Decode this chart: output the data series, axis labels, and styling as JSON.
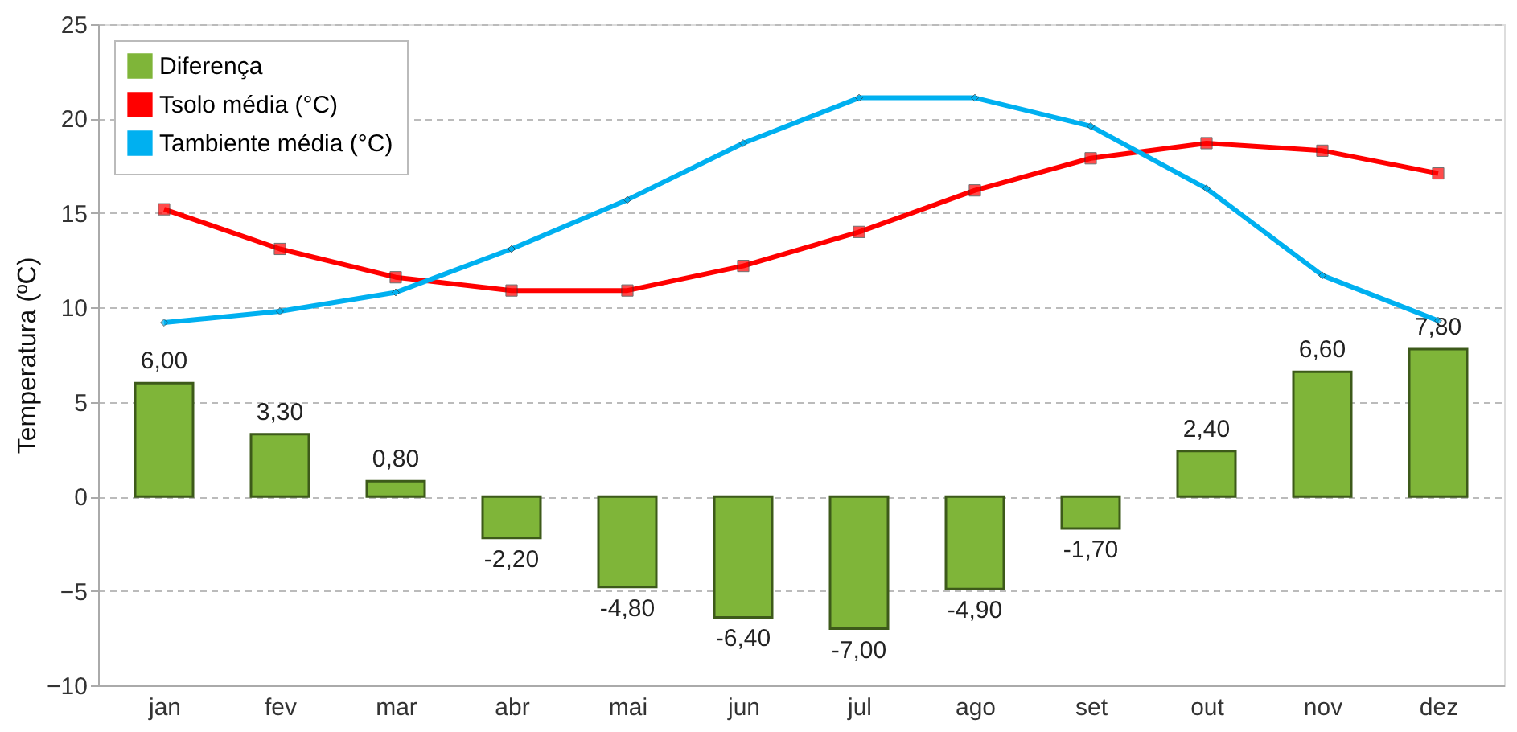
{
  "chart_data": {
    "type": "bar",
    "ylabel": "Temperatura (ºC)",
    "categories": [
      "jan",
      "fev",
      "mar",
      "abr",
      "mai",
      "jun",
      "jul",
      "ago",
      "set",
      "out",
      "nov",
      "dez"
    ],
    "series": [
      {
        "name": "Diferença",
        "color": "#7fb539",
        "values": [
          6.0,
          3.3,
          0.8,
          -2.2,
          -4.8,
          -6.4,
          -7.0,
          -4.9,
          -1.7,
          2.4,
          6.6,
          7.8
        ],
        "value_labels": [
          "6,00",
          "3,30",
          "0,80",
          "-2,20",
          "-4,80",
          "-6,40",
          "-7,00",
          "-4,90",
          "-1,70",
          "2,40",
          "6,60",
          "7,80"
        ]
      },
      {
        "name": "Tsolo média (°C)",
        "type": "line",
        "color": "#ff0000",
        "marker": "square",
        "values": [
          15.2,
          13.1,
          11.6,
          10.9,
          10.9,
          12.2,
          14.0,
          16.2,
          17.9,
          18.7,
          18.3,
          17.1
        ]
      },
      {
        "name": "Tambiente média (°C)",
        "type": "line",
        "color": "#00b0f0",
        "marker": "diamond",
        "values": [
          9.2,
          9.8,
          10.8,
          13.1,
          15.7,
          18.7,
          21.1,
          21.1,
          19.6,
          16.3,
          11.7,
          9.3
        ]
      }
    ],
    "ylim": [
      -10,
      25
    ],
    "yticks": [
      -10,
      -5,
      0,
      5,
      10,
      15,
      20,
      25
    ],
    "grid": "y",
    "legend": "top left"
  }
}
